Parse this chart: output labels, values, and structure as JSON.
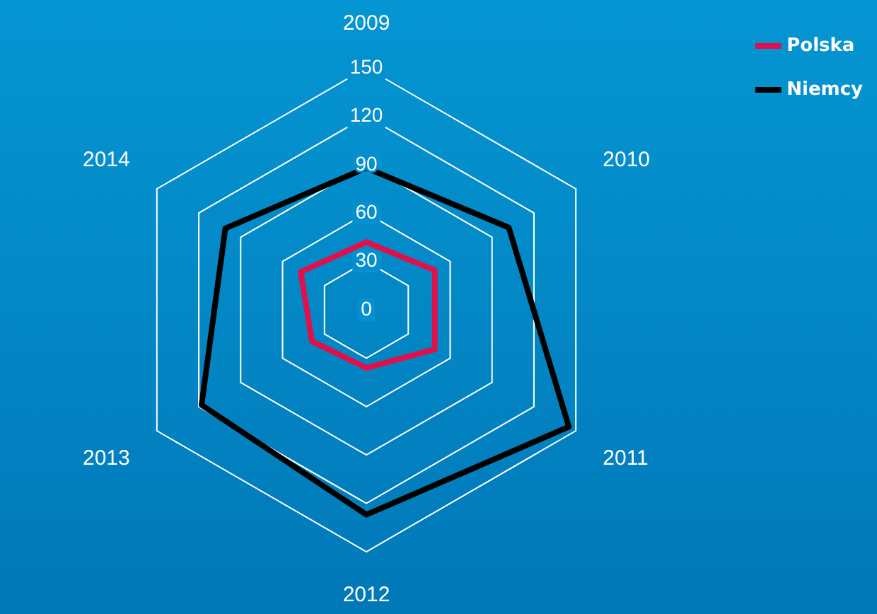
{
  "chart_data": {
    "type": "radar",
    "categories": [
      "2009",
      "2010",
      "2011",
      "2012",
      "2013",
      "2014"
    ],
    "series": [
      {
        "name": "Polska",
        "color": "#e0104a",
        "values": [
          42,
          49,
          49,
          36,
          39,
          47
        ]
      },
      {
        "name": "Niemcy",
        "color": "#000000",
        "values": [
          88,
          102,
          145,
          127,
          118,
          101
        ]
      }
    ],
    "ylim": [
      0,
      150
    ],
    "yticks": [
      0,
      30,
      60,
      90,
      120,
      150
    ],
    "grid": true,
    "legend": "top right",
    "marker": "none",
    "line_style": "solid"
  }
}
